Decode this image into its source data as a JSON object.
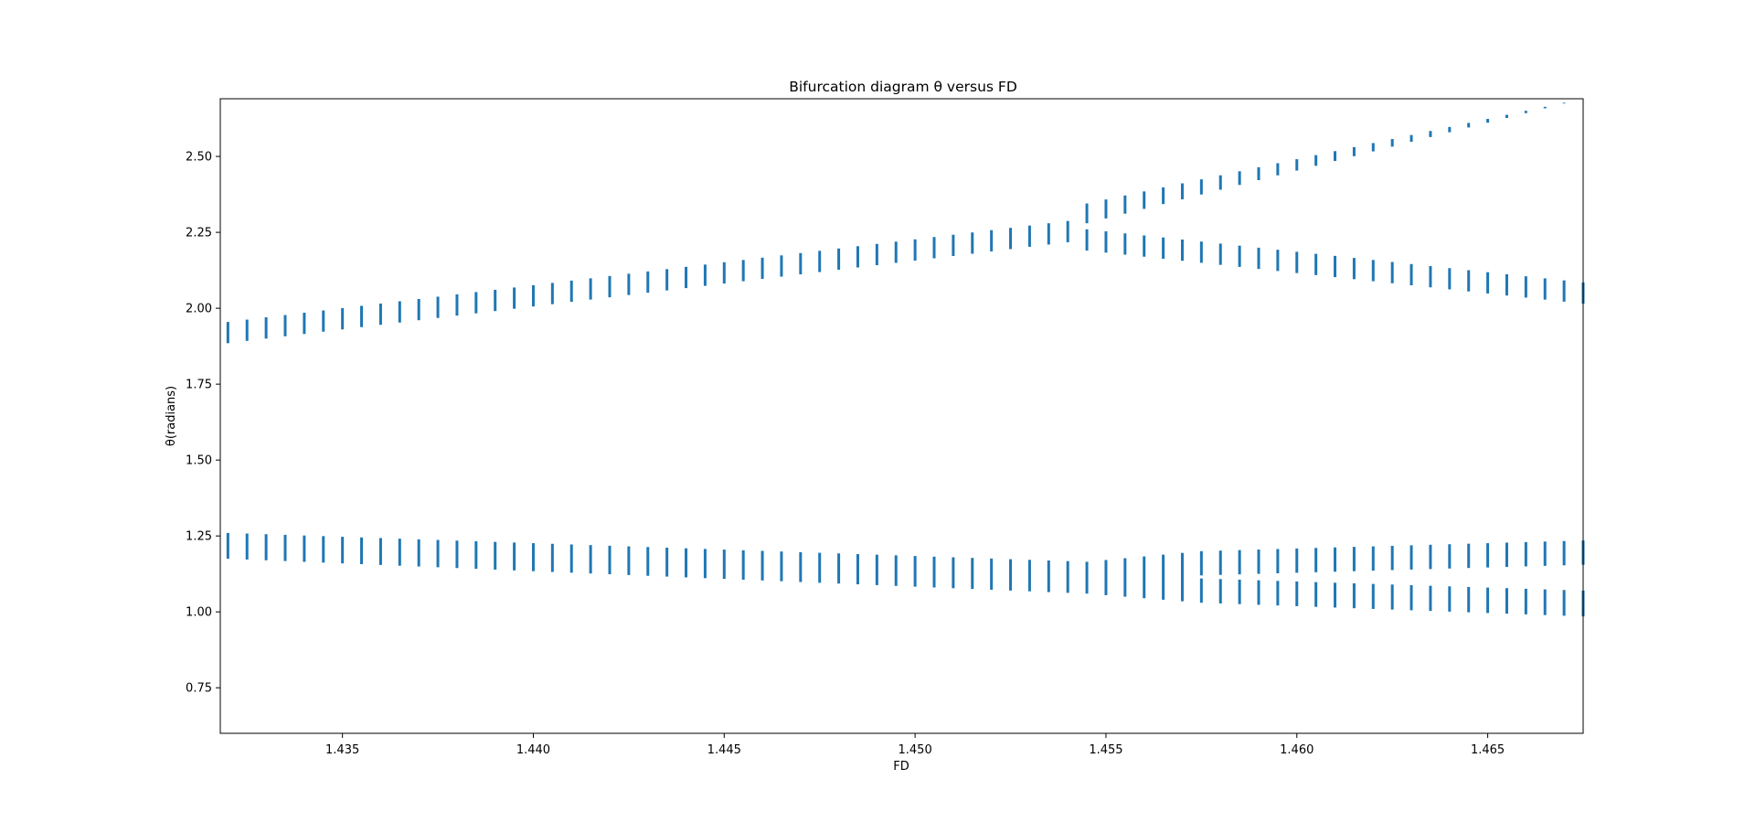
{
  "chart_data": {
    "type": "scatter",
    "title": "Bifurcation diagram  θ versus FD",
    "xlabel": "FD",
    "ylabel": "θ(radians)",
    "xlim": [
      1.4318,
      1.4675
    ],
    "ylim": [
      0.6,
      2.69
    ],
    "xticks": [
      1.435,
      1.44,
      1.445,
      1.45,
      1.455,
      1.46,
      1.465
    ],
    "xtick_labels": [
      "1.435",
      "1.440",
      "1.445",
      "1.450",
      "1.455",
      "1.460",
      "1.465"
    ],
    "yticks": [
      0.75,
      1.0,
      1.25,
      1.5,
      1.75,
      2.0,
      2.25,
      2.5
    ],
    "ytick_labels": [
      "0.75",
      "1.00",
      "1.25",
      "1.50",
      "1.75",
      "2.00",
      "2.25",
      "2.50"
    ],
    "grid": false,
    "marker_color": "#1f77b4",
    "x_start": 1.432,
    "x_step": 0.0005,
    "count": 72,
    "bifurcation_fd": 1.4545,
    "series": [
      {
        "values_before": [
          [
            1.432,
            1.885,
            1.955
          ],
          [
            1.4545,
            2.225,
            2.295
          ]
        ],
        "upper_after": [
          [
            1.4545,
            2.28,
            2.345
          ],
          [
            1.4675,
            2.69,
            2.69
          ]
        ],
        "lower_after": [
          [
            1.4545,
            2.19,
            2.26
          ],
          [
            1.4675,
            2.015,
            2.085
          ]
        ]
      },
      {
        "values_before": [
          [
            1.432,
            1.175,
            1.26
          ],
          [
            1.4545,
            1.06,
            1.165
          ]
        ],
        "upper_after": [
          [
            1.4575,
            1.12,
            1.2
          ],
          [
            1.4675,
            1.155,
            1.235
          ]
        ],
        "lower_after": [
          [
            1.4575,
            1.03,
            1.11
          ],
          [
            1.4675,
            0.985,
            1.07
          ]
        ]
      }
    ]
  }
}
